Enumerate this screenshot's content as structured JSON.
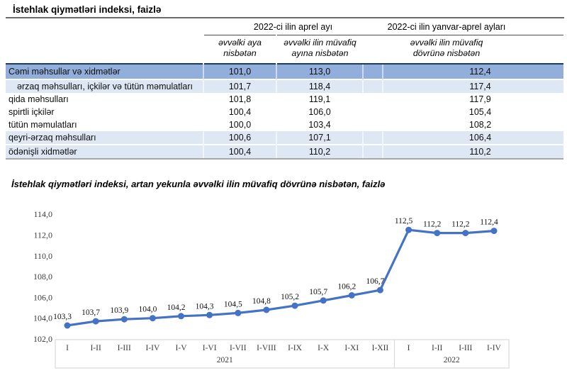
{
  "table": {
    "title": "İstehlak qiymətləri indeksi, faizlə",
    "col_groups": [
      {
        "label": "2022-ci ilin aprel ayı"
      },
      {
        "label": "2022-ci ilin yanvar-aprel ayları"
      }
    ],
    "sub_headers": [
      {
        "line1": "əvvəlki aya",
        "line2": "nisbətən"
      },
      {
        "line1": "əvvəlki ilin müvafiq",
        "line2": "ayına nisbətən"
      },
      {
        "line1": "əvvəlki ilin müvafiq",
        "line2": "dövrünə nisbətən"
      }
    ],
    "rows": [
      {
        "label": "Cəmi məhsullar və xidmətlər",
        "values": [
          "101,0",
          "113,0",
          "112,4"
        ]
      },
      {
        "label": "ərzaq məhsulları, içkilər və tütün məmulatları",
        "values": [
          "101,7",
          "118,4",
          "117,4"
        ]
      },
      {
        "label": "qida məhsulları",
        "values": [
          "101,8",
          "119,1",
          "117,9"
        ]
      },
      {
        "label": "spirtli içkilər",
        "values": [
          "100,4",
          "106,0",
          "105,4"
        ]
      },
      {
        "label": "tütün məmulatları",
        "values": [
          "100,0",
          "103,4",
          "108,2"
        ]
      },
      {
        "label": "qeyri-ərzaq məhsulları",
        "values": [
          "100,6",
          "107,1",
          "106,4"
        ]
      },
      {
        "label": "ödənişli xidmətlər",
        "values": [
          "100,4",
          "110,2",
          "110,2"
        ]
      }
    ],
    "colors": {
      "total_row_bg": "#92AFDB",
      "alt_row_bg": "#DEE8F5"
    }
  },
  "chart_data": {
    "type": "line",
    "title": "İstehlak qiymətləri indeksi, artan yekunla əvvəlki ilin müvafiq dövrünə nisbətən, faizlə",
    "categories": [
      "I",
      "I-II",
      "I-III",
      "I-IV",
      "I-V",
      "I-VI",
      "I-VII",
      "I-VIII",
      "I-IX",
      "I-X",
      "I-XI",
      "I-XII",
      "I",
      "I-II",
      "I-III",
      "I-IV"
    ],
    "category_groups": [
      {
        "label": "2021",
        "count": 12
      },
      {
        "label": "2022",
        "count": 4
      }
    ],
    "values": [
      103.3,
      103.7,
      103.9,
      104.0,
      104.2,
      104.3,
      104.5,
      104.8,
      105.2,
      105.7,
      106.2,
      106.7,
      112.5,
      112.2,
      112.2,
      112.4
    ],
    "ylim": [
      102,
      114
    ],
    "ytick_step": 2,
    "decimal_separator": ",",
    "line_color": "#4472C4",
    "grid": false,
    "legend": false,
    "xlabel": "",
    "ylabel": ""
  }
}
